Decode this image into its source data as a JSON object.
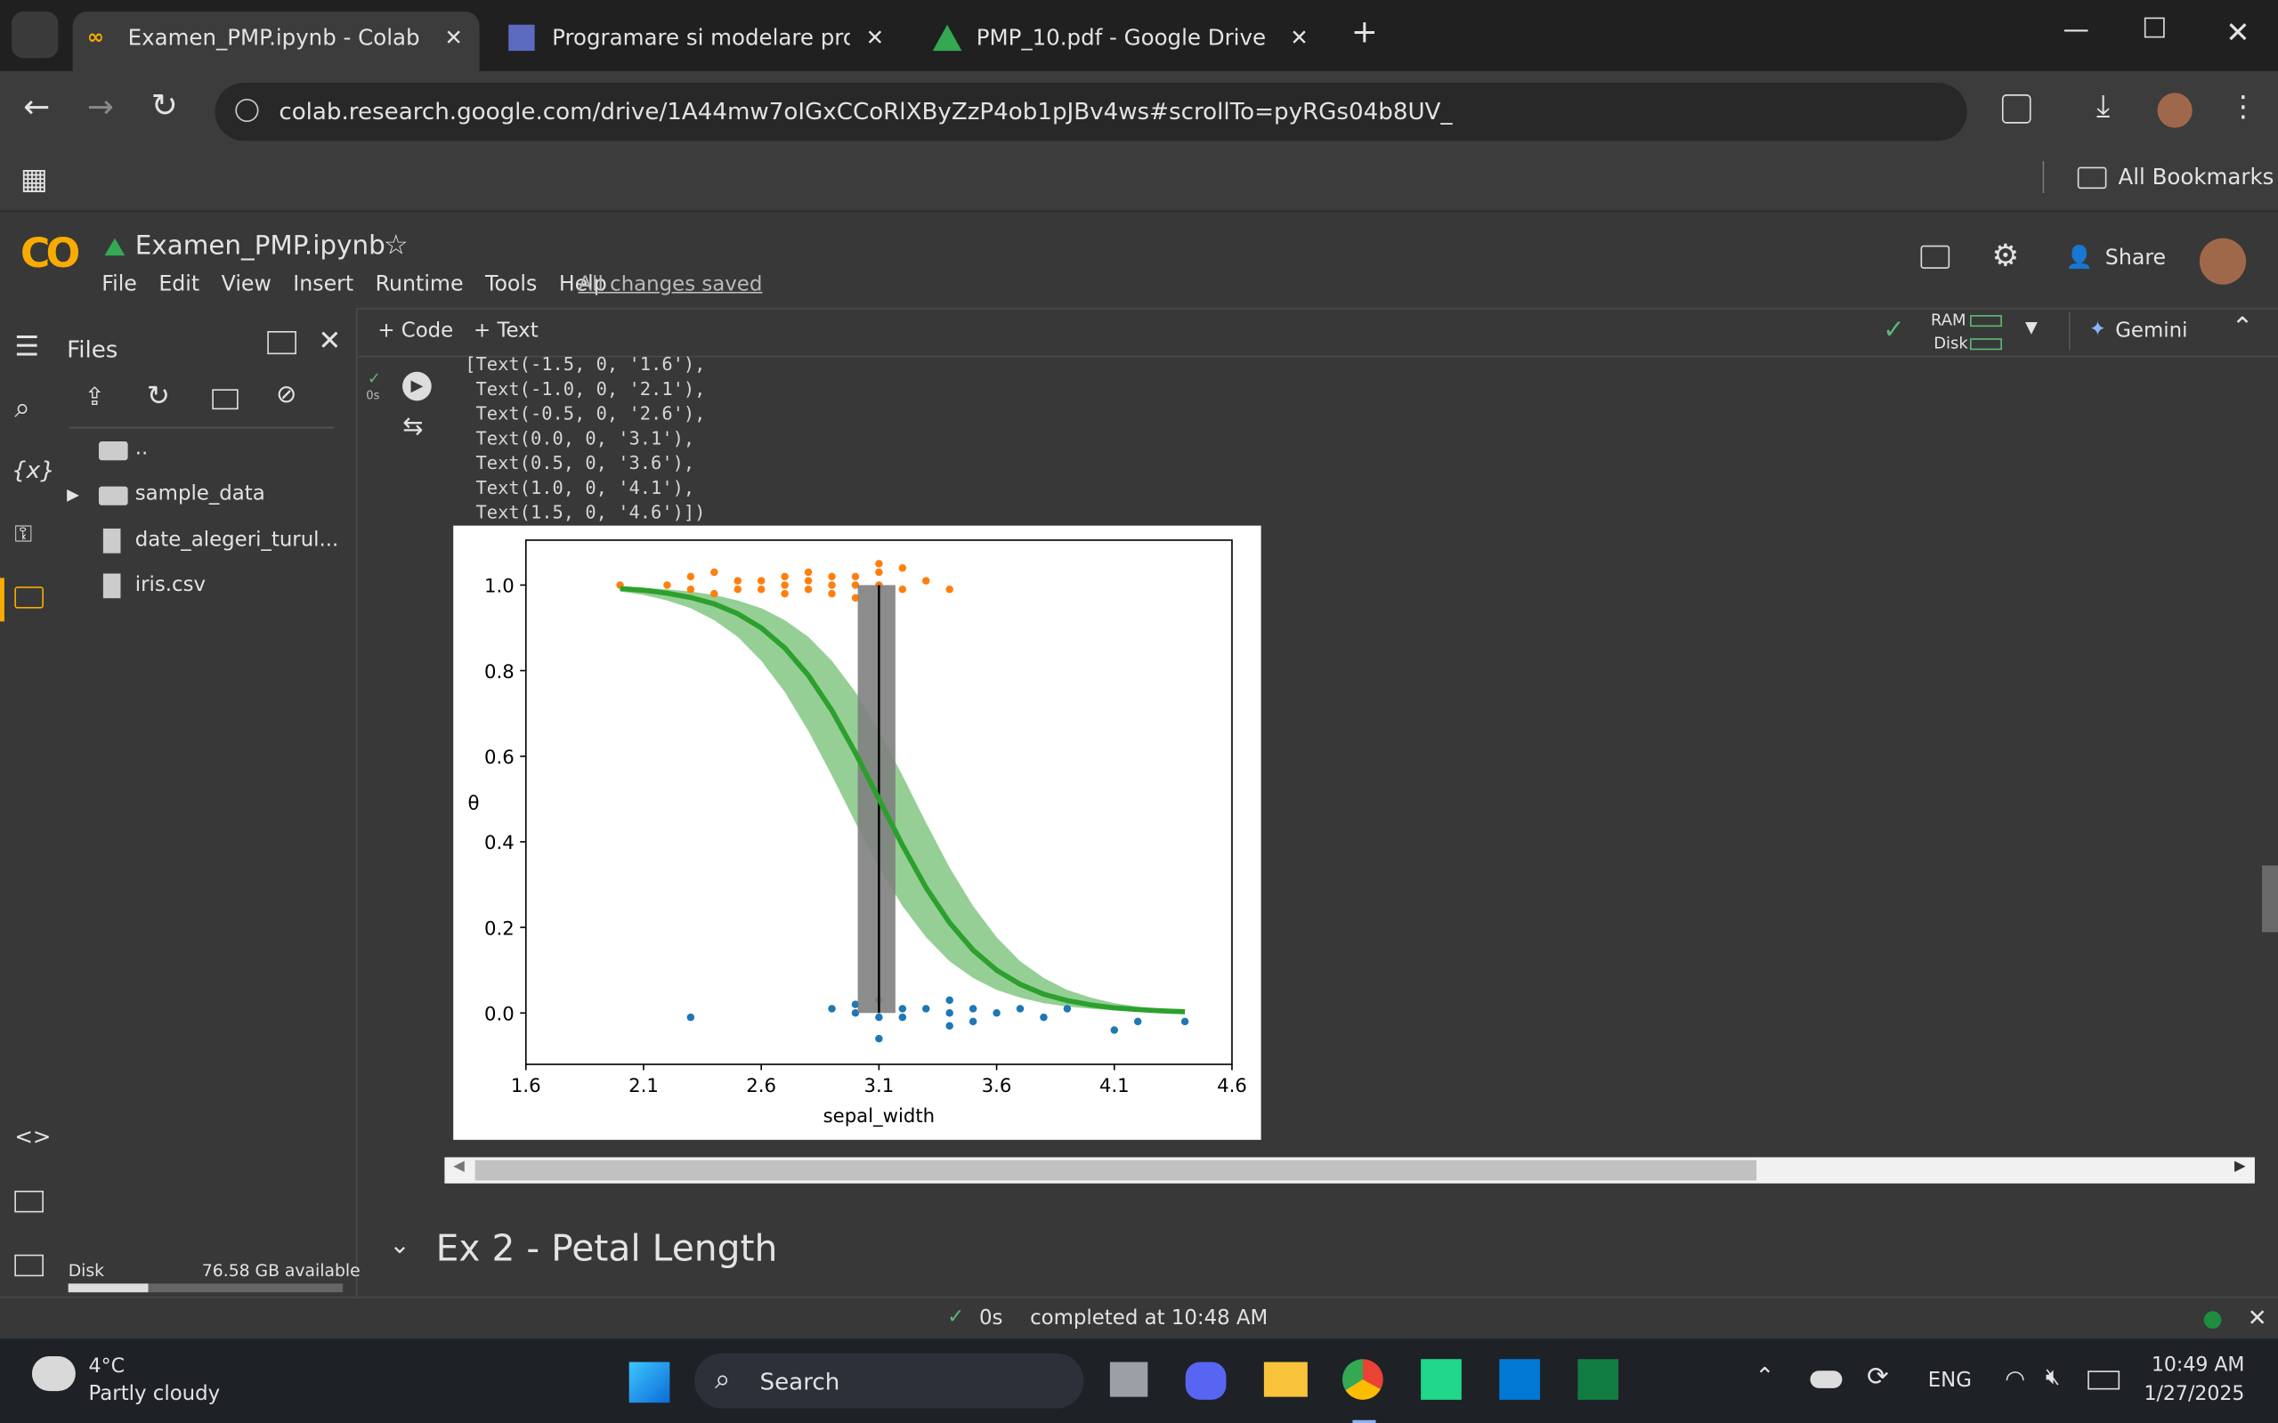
{
  "browser": {
    "tabs": [
      "Examen_PMP.ipynb - Colab",
      "Programare si modelare probab",
      "PMP_10.pdf - Google Drive"
    ],
    "url": "colab.research.google.com/drive/1A44mw7oIGxCCoRlXByZzP4ob1pJBv4ws#scrollTo=pyRGs04b8UV_",
    "bookmarks": "All Bookmarks"
  },
  "notebook": {
    "title": "Examen_PMP.ipynb",
    "menu": [
      "File",
      "Edit",
      "View",
      "Insert",
      "Runtime",
      "Tools",
      "Help"
    ],
    "save_status": "All changes saved",
    "share": "Share",
    "add_code": "Code",
    "add_text": "Text",
    "ram": "RAM",
    "disk": "Disk",
    "gemini": "Gemini"
  },
  "files": {
    "title": "Files",
    "items": [
      "..",
      "sample_data",
      "date_alegeri_turul...",
      "iris.csv"
    ],
    "disk_label": "Disk",
    "disk_free": "76.58 GB available"
  },
  "cell": {
    "exec_time": "0s",
    "output_lines": [
      "[Text(-1.5, 0, '1.6'),",
      " Text(-1.0, 0, '2.1'),",
      " Text(-0.5, 0, '2.6'),",
      " Text(0.0, 0, '3.1'),",
      " Text(0.5, 0, '3.6'),",
      " Text(1.0, 0, '4.1'),",
      " Text(1.5, 0, '4.6')])"
    ]
  },
  "chart_data": {
    "type": "scatter",
    "xlabel": "sepal_width",
    "ylabel": "θ",
    "xlim": [
      -1.5,
      1.5
    ],
    "xticks": [
      {
        "value": -1.5,
        "label": "1.6"
      },
      {
        "value": -1.0,
        "label": "2.1"
      },
      {
        "value": -0.5,
        "label": "2.6"
      },
      {
        "value": 0.0,
        "label": "3.1"
      },
      {
        "value": 0.5,
        "label": "3.6"
      },
      {
        "value": 1.0,
        "label": "4.1"
      },
      {
        "value": 1.5,
        "label": "4.6"
      }
    ],
    "ylim": [
      -0.12,
      1.105
    ],
    "yticks": [
      {
        "value": 0,
        "label": "0.0"
      },
      0.2,
      0.4,
      0.6,
      0.8,
      {
        "value": 1,
        "label": "1.0"
      }
    ],
    "series": [
      {
        "color": "#ff7f0e",
        "x": [
          -1.1,
          -0.9,
          -0.8,
          -0.8,
          -0.7,
          -0.7,
          -0.6,
          -0.6,
          -0.5,
          -0.5,
          -0.4,
          -0.4,
          -0.4,
          -0.3,
          -0.3,
          -0.3,
          -0.2,
          -0.2,
          -0.2,
          -0.1,
          -0.1,
          -0.1,
          0.0,
          0.0,
          0.0,
          0.1,
          0.1,
          0.2,
          0.3
        ],
        "values": [
          1.0,
          1.0,
          1.02,
          0.99,
          1.03,
          0.98,
          1.01,
          0.99,
          1.01,
          0.99,
          1.02,
          1.0,
          0.98,
          1.03,
          1.01,
          0.99,
          1.02,
          1.0,
          0.98,
          1.02,
          1.0,
          0.97,
          1.05,
          1.03,
          1.0,
          1.04,
          0.99,
          1.01,
          0.99
        ]
      },
      {
        "color": "#1f77b4",
        "x": [
          -0.8,
          -0.2,
          -0.1,
          -0.1,
          0.0,
          0.0,
          0.0,
          0.1,
          0.1,
          0.2,
          0.3,
          0.3,
          0.3,
          0.4,
          0.4,
          0.5,
          0.6,
          0.7,
          0.8,
          1.0,
          1.1,
          1.3
        ],
        "values": [
          -0.01,
          0.01,
          0.02,
          0.0,
          0.03,
          -0.01,
          -0.06,
          0.01,
          -0.01,
          0.01,
          0.03,
          0.0,
          -0.03,
          0.01,
          -0.02,
          0.0,
          0.01,
          -0.01,
          0.01,
          -0.04,
          -0.02,
          -0.02
        ]
      }
    ],
    "curve": {
      "color": "#2ca02c",
      "x": [
        -1.1,
        -1.0,
        -0.9,
        -0.8,
        -0.7,
        -0.6,
        -0.5,
        -0.4,
        -0.3,
        -0.2,
        -0.1,
        0.0,
        0.1,
        0.2,
        0.3,
        0.4,
        0.5,
        0.6,
        0.7,
        0.8,
        0.9,
        1.0,
        1.1,
        1.2,
        1.3
      ],
      "values": [
        0.992,
        0.988,
        0.981,
        0.971,
        0.956,
        0.933,
        0.9,
        0.853,
        0.789,
        0.707,
        0.608,
        0.5,
        0.392,
        0.293,
        0.211,
        0.147,
        0.1,
        0.067,
        0.044,
        0.029,
        0.019,
        0.012,
        0.008,
        0.005,
        0.003
      ],
      "band_upper": [
        0.996,
        0.994,
        0.99,
        0.985,
        0.977,
        0.964,
        0.946,
        0.918,
        0.879,
        0.823,
        0.75,
        0.659,
        0.555,
        0.445,
        0.34,
        0.25,
        0.177,
        0.121,
        0.082,
        0.054,
        0.036,
        0.023,
        0.015,
        0.01,
        0.006
      ],
      "band_lower": [
        0.985,
        0.977,
        0.964,
        0.946,
        0.918,
        0.879,
        0.823,
        0.75,
        0.659,
        0.555,
        0.445,
        0.341,
        0.25,
        0.177,
        0.121,
        0.082,
        0.054,
        0.036,
        0.023,
        0.015,
        0.01,
        0.006,
        0.004,
        0.003,
        0.002
      ]
    },
    "boundary": {
      "mean": 0.0,
      "hdi": [
        -0.09,
        0.07
      ],
      "y": [
        0,
        1
      ],
      "color": "#808080"
    }
  },
  "section": {
    "title": "Ex 2 - Petal Length"
  },
  "status": {
    "time": "0s",
    "message": "completed at 10:48 AM"
  },
  "taskbar": {
    "temperature": "4°C",
    "weather": "Partly cloudy",
    "search": "Search",
    "language": "ENG",
    "time": "10:49 AM",
    "date": "1/27/2025"
  }
}
